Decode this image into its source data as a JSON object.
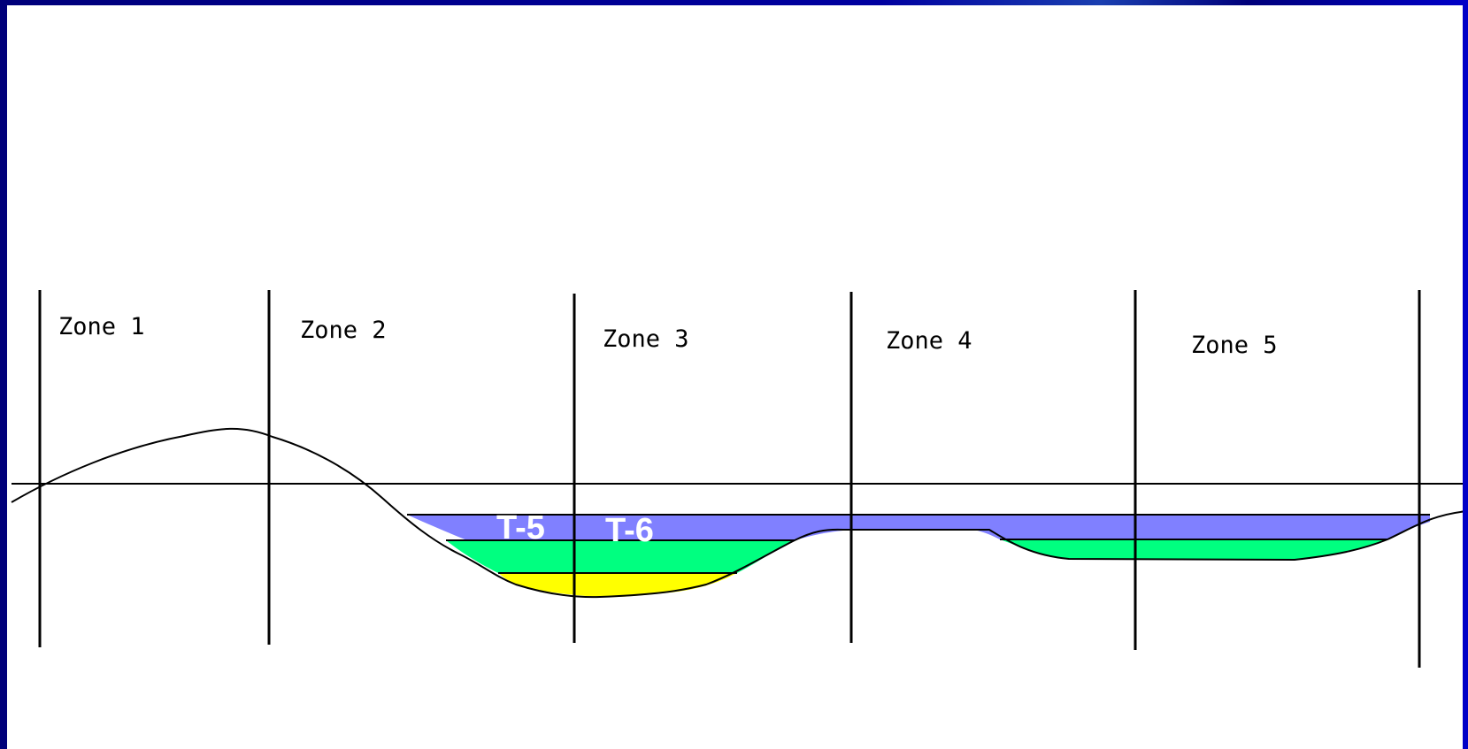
{
  "diagram": {
    "zones": [
      {
        "label": "Zone 1"
      },
      {
        "label": "Zone 2"
      },
      {
        "label": "Zone 3"
      },
      {
        "label": "Zone 4"
      },
      {
        "label": "Zone 5"
      }
    ],
    "level_labels": [
      "T-5",
      "T-6"
    ],
    "colors": {
      "background_frame": "#0000a0",
      "water_blue": "#8080ff",
      "water_green": "#00ff80",
      "water_yellow": "#ffff00",
      "lines": "#000000",
      "label_text": "#ffffff"
    }
  }
}
